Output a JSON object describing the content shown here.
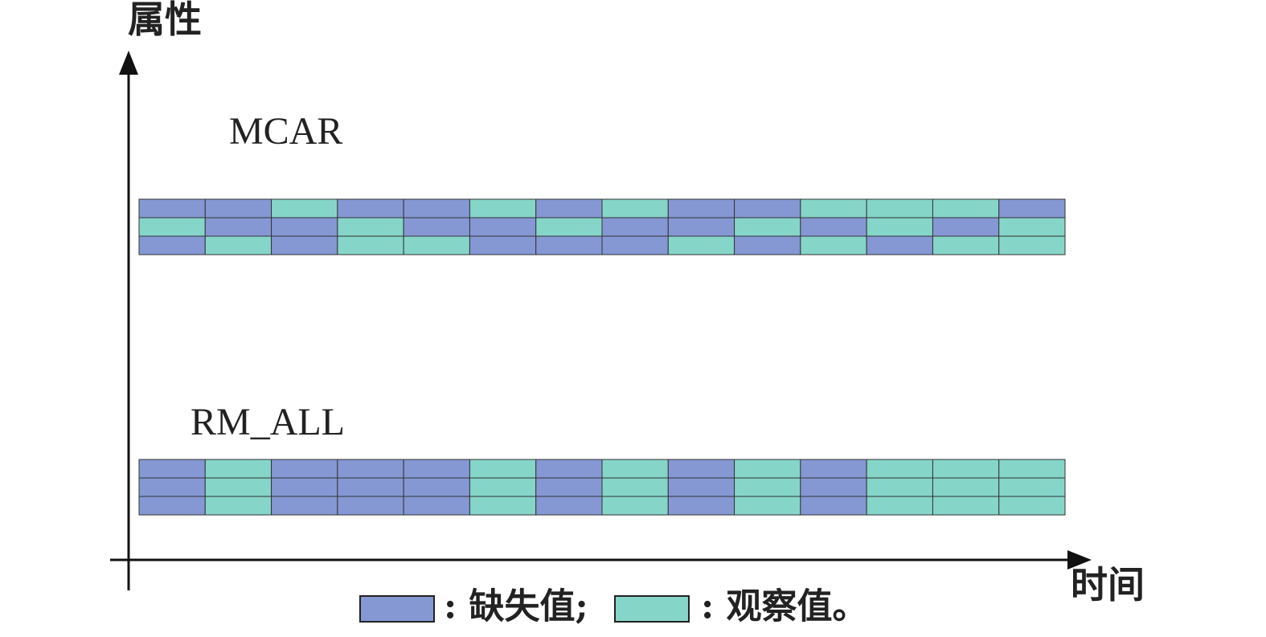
{
  "axis": {
    "y_label": "属性",
    "x_label": "时间"
  },
  "panels": [
    {
      "label": "MCAR",
      "cells": [
        [
          1,
          1,
          0,
          1,
          1,
          0,
          1,
          0,
          1,
          1,
          0,
          0,
          0,
          1
        ],
        [
          0,
          1,
          1,
          0,
          1,
          1,
          0,
          1,
          1,
          0,
          1,
          0,
          1,
          0
        ],
        [
          1,
          0,
          1,
          0,
          0,
          1,
          1,
          1,
          0,
          1,
          0,
          1,
          0,
          0
        ]
      ]
    },
    {
      "label": "RM_ALL",
      "cells": [
        [
          1,
          0,
          1,
          1,
          1,
          0,
          1,
          0,
          1,
          0,
          1,
          0,
          0,
          0
        ],
        [
          1,
          0,
          1,
          1,
          1,
          0,
          1,
          0,
          1,
          0,
          1,
          0,
          0,
          0
        ],
        [
          1,
          0,
          1,
          1,
          1,
          0,
          1,
          0,
          1,
          0,
          1,
          0,
          0,
          0
        ]
      ]
    }
  ],
  "legend": [
    {
      "label": ": 缺失值;",
      "color": "#8598d4"
    },
    {
      "label": ": 观察值。",
      "color": "#86d5c9"
    }
  ]
}
